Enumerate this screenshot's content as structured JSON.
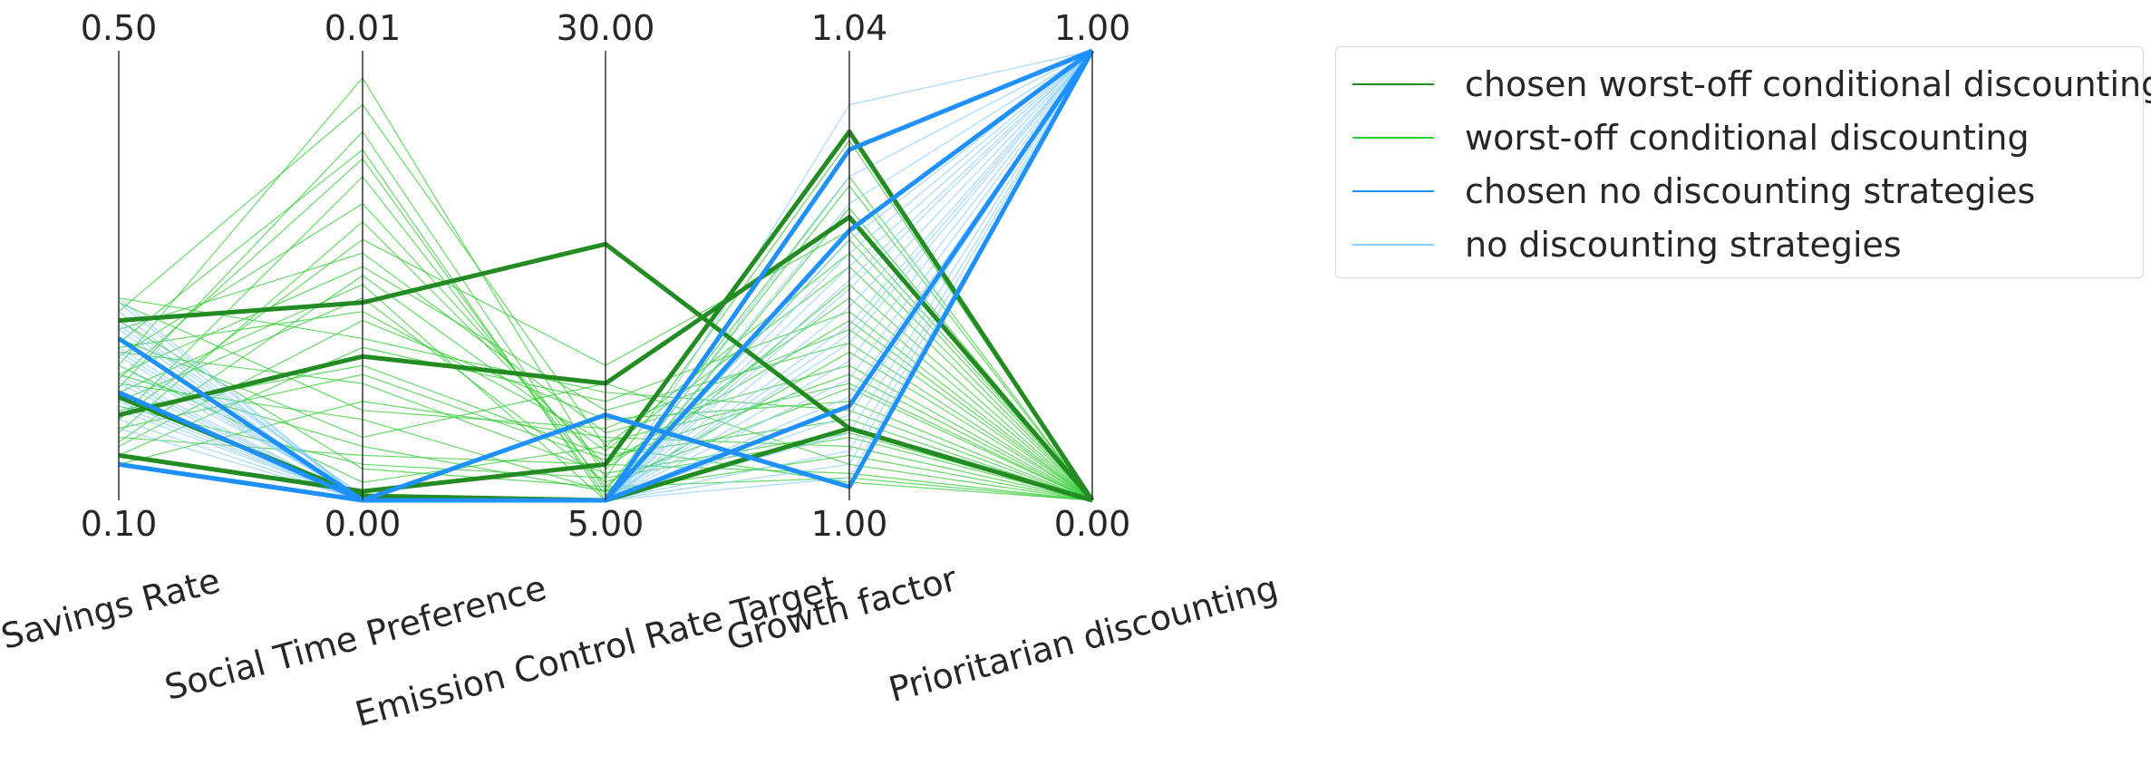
{
  "chart_data": {
    "type": "parallel_coordinates",
    "axes": [
      {
        "label": "Savings Rate",
        "max": "0.50",
        "min": "0.10"
      },
      {
        "label": "Social Time Preference",
        "max": "0.01",
        "min": "0.00"
      },
      {
        "label": "Emission Control Rate Target",
        "max": "30.00",
        "min": "5.00"
      },
      {
        "label": "Growth factor",
        "max": "1.04",
        "min": "1.00"
      },
      {
        "label": "Prioritarian discounting",
        "max": "1.00",
        "min": "0.00"
      }
    ],
    "legend_position": "upper-right, outside plot",
    "grid": false,
    "series": [
      {
        "name": "chosen worst-off conditional discounting",
        "color": "#228b22",
        "style": "thick",
        "lines": [
          [
            0.4,
            0.44,
            0.57,
            0.16,
            0.0
          ],
          [
            0.19,
            0.32,
            0.26,
            0.63,
            0.0
          ],
          [
            0.1,
            0.02,
            0.08,
            0.82,
            0.0
          ],
          [
            0.23,
            0.01,
            0.0,
            0.16,
            0.0
          ]
        ]
      },
      {
        "name": "worst-off conditional discounting",
        "color": "#33cc33",
        "style": "thin",
        "lines": [
          [
            0.3,
            0.94,
            0.05,
            0.8,
            0.0
          ],
          [
            0.25,
            0.82,
            0.02,
            0.72,
            0.0
          ],
          [
            0.35,
            0.78,
            0.0,
            0.65,
            0.0
          ],
          [
            0.42,
            0.88,
            0.12,
            0.55,
            0.0
          ],
          [
            0.18,
            0.72,
            0.03,
            0.48,
            0.0
          ],
          [
            0.15,
            0.62,
            0.08,
            0.4,
            0.0
          ],
          [
            0.28,
            0.52,
            0.2,
            0.35,
            0.0
          ],
          [
            0.38,
            0.55,
            0.15,
            0.3,
            0.0
          ],
          [
            0.22,
            0.45,
            0.04,
            0.25,
            0.0
          ],
          [
            0.12,
            0.4,
            0.18,
            0.22,
            0.0
          ],
          [
            0.45,
            0.36,
            0.24,
            0.2,
            0.0
          ],
          [
            0.2,
            0.3,
            0.1,
            0.18,
            0.0
          ],
          [
            0.33,
            0.26,
            0.06,
            0.15,
            0.0
          ],
          [
            0.08,
            0.22,
            0.14,
            0.12,
            0.0
          ],
          [
            0.26,
            0.18,
            0.02,
            0.1,
            0.0
          ],
          [
            0.36,
            0.14,
            0.26,
            0.08,
            0.0
          ],
          [
            0.14,
            0.1,
            0.08,
            0.06,
            0.0
          ],
          [
            0.4,
            0.07,
            0.03,
            0.05,
            0.0
          ],
          [
            0.3,
            0.04,
            0.12,
            0.04,
            0.0
          ],
          [
            0.18,
            0.58,
            0.3,
            0.6,
            0.0
          ],
          [
            0.24,
            0.48,
            0.0,
            0.58,
            0.0
          ],
          [
            0.32,
            0.66,
            0.07,
            0.45,
            0.0
          ],
          [
            0.1,
            0.34,
            0.22,
            0.42,
            0.0
          ],
          [
            0.44,
            0.2,
            0.16,
            0.38,
            0.0
          ],
          [
            0.28,
            0.12,
            0.02,
            0.33,
            0.0
          ],
          [
            0.16,
            0.28,
            0.09,
            0.28,
            0.0
          ],
          [
            0.34,
            0.42,
            0.13,
            0.26,
            0.0
          ],
          [
            0.21,
            0.08,
            0.05,
            0.14,
            0.0
          ],
          [
            0.27,
            0.76,
            0.01,
            0.7,
            0.0
          ],
          [
            0.13,
            0.5,
            0.11,
            0.52,
            0.0
          ]
        ]
      },
      {
        "name": "chosen no discounting strategies",
        "color": "#1e90ff",
        "style": "thick",
        "lines": [
          [
            0.36,
            0.0,
            0.0,
            0.78,
            1.0
          ],
          [
            0.24,
            0.0,
            0.0,
            0.6,
            1.0
          ],
          [
            0.08,
            0.0,
            0.0,
            0.21,
            1.0
          ],
          [
            0.08,
            0.0,
            0.19,
            0.03,
            1.0
          ]
        ]
      },
      {
        "name": "no discounting strategies",
        "color": "#87cefa",
        "style": "thin",
        "lines": [
          [
            0.45,
            0.0,
            0.0,
            0.88,
            1.0
          ],
          [
            0.42,
            0.0,
            0.0,
            0.72,
            1.0
          ],
          [
            0.4,
            0.01,
            0.0,
            0.66,
            1.0
          ],
          [
            0.38,
            0.0,
            0.0,
            0.58,
            1.0
          ],
          [
            0.36,
            0.0,
            0.0,
            0.52,
            1.0
          ],
          [
            0.34,
            0.0,
            0.0,
            0.47,
            1.0
          ],
          [
            0.32,
            0.0,
            0.0,
            0.43,
            1.0
          ],
          [
            0.3,
            0.01,
            0.0,
            0.39,
            1.0
          ],
          [
            0.28,
            0.0,
            0.0,
            0.35,
            1.0
          ],
          [
            0.26,
            0.0,
            0.0,
            0.31,
            1.0
          ],
          [
            0.24,
            0.0,
            0.0,
            0.27,
            1.0
          ],
          [
            0.22,
            0.0,
            0.0,
            0.23,
            1.0
          ],
          [
            0.2,
            0.0,
            0.0,
            0.19,
            1.0
          ],
          [
            0.18,
            0.0,
            0.0,
            0.15,
            1.0
          ],
          [
            0.16,
            0.0,
            0.0,
            0.11,
            1.0
          ],
          [
            0.44,
            0.0,
            0.0,
            0.08,
            1.0
          ],
          [
            0.39,
            0.01,
            0.0,
            0.05,
            1.0
          ],
          [
            0.33,
            0.0,
            0.0,
            0.55,
            1.0
          ],
          [
            0.27,
            0.0,
            0.0,
            0.49,
            1.0
          ],
          [
            0.21,
            0.0,
            0.0,
            0.37,
            1.0
          ]
        ]
      }
    ]
  }
}
